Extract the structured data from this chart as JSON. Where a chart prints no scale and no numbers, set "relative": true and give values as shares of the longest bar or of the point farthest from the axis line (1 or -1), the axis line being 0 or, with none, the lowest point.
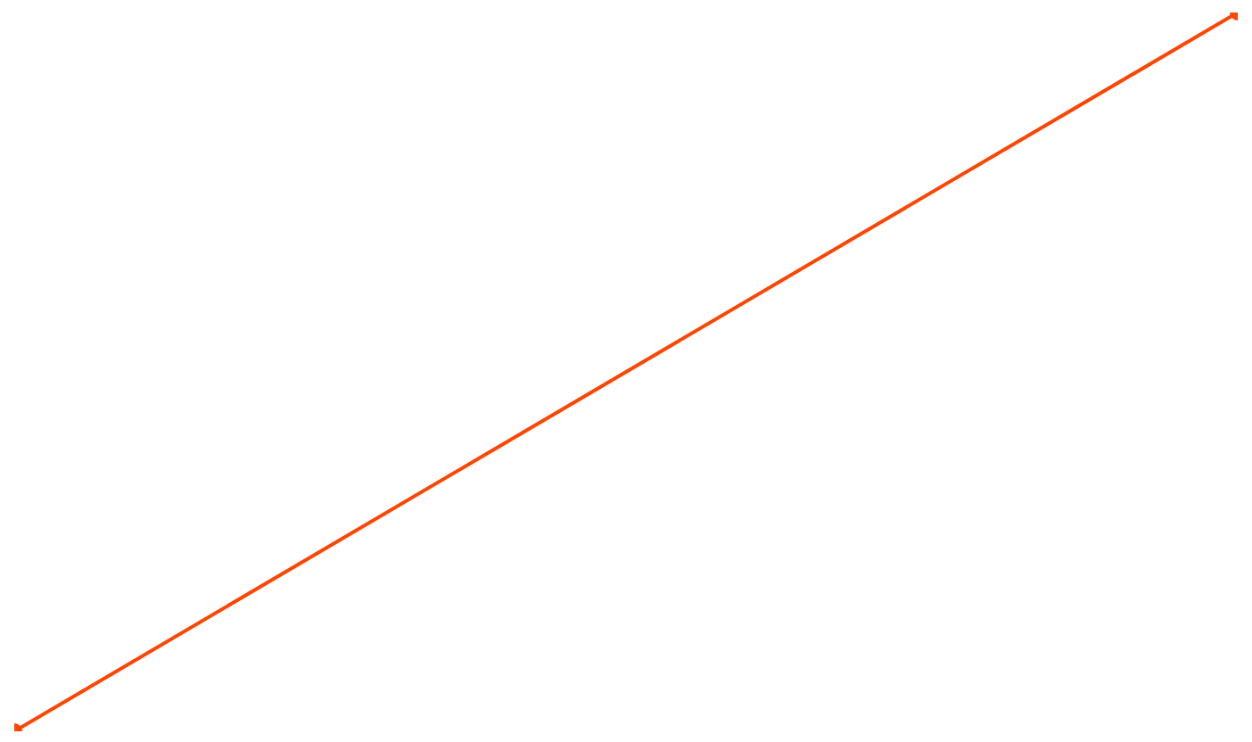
{
  "chart_data": {
    "type": "line",
    "relative": true,
    "categories": [
      null,
      null
    ],
    "marker": "circle",
    "series": [
      {
        "color": "#ff4500",
        "values": [
          0,
          1
        ]
      }
    ]
  }
}
